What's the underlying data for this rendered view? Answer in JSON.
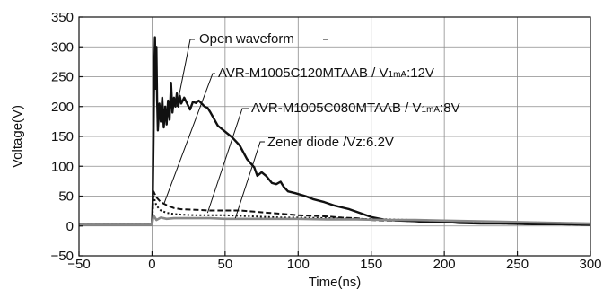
{
  "chart_data": {
    "type": "line",
    "title": "",
    "xlabel": "Time(ns)",
    "ylabel": "Voltage(V)",
    "xlim": [
      -50,
      300
    ],
    "ylim": [
      -50,
      350
    ],
    "xticks": [
      -50,
      0,
      50,
      100,
      150,
      200,
      250,
      300
    ],
    "yticks": [
      -50,
      0,
      50,
      100,
      150,
      200,
      250,
      300,
      350
    ],
    "grid": true,
    "series": [
      {
        "name": "Open waveform",
        "color": "#111111",
        "style": "solid",
        "annotation": "Open waveform",
        "points": [
          [
            -50,
            2
          ],
          [
            0,
            2
          ],
          [
            0.5,
            40
          ],
          [
            1.0,
            150
          ],
          [
            1.5,
            265
          ],
          [
            2.0,
            316
          ],
          [
            2.5,
            230
          ],
          [
            3.0,
            300
          ],
          [
            3.5,
            210
          ],
          [
            4.0,
            160
          ],
          [
            5.0,
            205
          ],
          [
            6.0,
            175
          ],
          [
            7.0,
            215
          ],
          [
            8.0,
            165
          ],
          [
            9.0,
            200
          ],
          [
            10.0,
            170
          ],
          [
            11.0,
            210
          ],
          [
            12.0,
            178
          ],
          [
            13.0,
            240
          ],
          [
            14.0,
            190
          ],
          [
            15.0,
            215
          ],
          [
            16.0,
            200
          ],
          [
            17.0,
            222
          ],
          [
            18.0,
            200
          ],
          [
            19.0,
            218
          ],
          [
            20.0,
            205
          ],
          [
            22.0,
            215
          ],
          [
            24.0,
            205
          ],
          [
            26.0,
            195
          ],
          [
            28.0,
            208
          ],
          [
            30.0,
            206
          ],
          [
            32.0,
            210
          ],
          [
            34.0,
            205
          ],
          [
            36.0,
            200
          ],
          [
            38.0,
            198
          ],
          [
            40.0,
            190
          ],
          [
            45.0,
            168
          ],
          [
            50.0,
            158
          ],
          [
            55.0,
            148
          ],
          [
            60.0,
            135
          ],
          [
            65.0,
            112
          ],
          [
            70.0,
            98
          ],
          [
            72.0,
            84
          ],
          [
            75.0,
            90
          ],
          [
            78.0,
            84
          ],
          [
            82.0,
            72
          ],
          [
            85.0,
            70
          ],
          [
            88.0,
            74
          ],
          [
            90.0,
            66
          ],
          [
            93.0,
            58
          ],
          [
            98.0,
            55
          ],
          [
            105.0,
            50
          ],
          [
            110.0,
            45
          ],
          [
            118.0,
            40
          ],
          [
            125.0,
            34
          ],
          [
            135.0,
            28
          ],
          [
            142.0,
            22
          ],
          [
            150.0,
            15
          ],
          [
            160.0,
            10
          ],
          [
            170.0,
            9
          ],
          [
            180.0,
            8
          ],
          [
            190.0,
            6
          ],
          [
            200.0,
            7
          ],
          [
            210.0,
            5
          ],
          [
            225.0,
            4
          ],
          [
            240.0,
            4
          ],
          [
            260.0,
            3
          ],
          [
            280.0,
            3
          ],
          [
            300.0,
            2
          ]
        ]
      },
      {
        "name": "AVR-M1005C120MTAAB / V1mA:12V",
        "color": "#111111",
        "style": "dashed",
        "annotation_main": "AVR-M1005C120MTAAB / V",
        "annotation_sub": "1mA",
        "annotation_tail": ":12V",
        "points": [
          [
            -50,
            2
          ],
          [
            0,
            2
          ],
          [
            1.0,
            58
          ],
          [
            3.0,
            48
          ],
          [
            6.0,
            40
          ],
          [
            10.0,
            35
          ],
          [
            15.0,
            30
          ],
          [
            20.0,
            28
          ],
          [
            30.0,
            27
          ],
          [
            40.0,
            26
          ],
          [
            50.0,
            26
          ],
          [
            60.0,
            26
          ],
          [
            70.0,
            24
          ],
          [
            80.0,
            22
          ],
          [
            90.0,
            20
          ],
          [
            100.0,
            18
          ],
          [
            110.0,
            17
          ],
          [
            120.0,
            16
          ],
          [
            130.0,
            14
          ],
          [
            140.0,
            13
          ],
          [
            150.0,
            10
          ],
          [
            160.0,
            9
          ],
          [
            170.0,
            9
          ],
          [
            180.0,
            8
          ],
          [
            190.0,
            6
          ],
          [
            200.0,
            6
          ],
          [
            220.0,
            5
          ],
          [
            240.0,
            4
          ],
          [
            260.0,
            3
          ],
          [
            280.0,
            3
          ],
          [
            300.0,
            2
          ]
        ]
      },
      {
        "name": "AVR-M1005C080MTAAB / V1mA:8V",
        "color": "#111111",
        "style": "dotted",
        "annotation_main": "AVR-M1005C080MTAAB / V",
        "annotation_sub": "1mA",
        "annotation_tail": ":8V",
        "points": [
          [
            -50,
            2
          ],
          [
            0,
            2
          ],
          [
            1.0,
            50
          ],
          [
            3.0,
            34
          ],
          [
            6.0,
            26
          ],
          [
            10.0,
            22
          ],
          [
            15.0,
            20
          ],
          [
            20.0,
            19
          ],
          [
            30.0,
            18
          ],
          [
            40.0,
            18
          ],
          [
            50.0,
            18
          ],
          [
            60.0,
            17
          ],
          [
            70.0,
            16
          ],
          [
            80.0,
            15
          ],
          [
            90.0,
            14
          ],
          [
            100.0,
            14
          ],
          [
            120.0,
            13
          ],
          [
            140.0,
            12
          ],
          [
            160.0,
            11
          ],
          [
            180.0,
            10
          ],
          [
            200.0,
            9
          ],
          [
            210.0,
            8
          ],
          [
            220.0,
            7
          ],
          [
            240.0,
            7
          ],
          [
            260.0,
            6
          ],
          [
            280.0,
            5
          ],
          [
            300.0,
            4
          ]
        ]
      },
      {
        "name": "Zener diode /Vz:6.2V",
        "color": "#888888",
        "style": "solid",
        "annotation": "Zener diode /Vz:6.2V",
        "points": [
          [
            -50,
            2
          ],
          [
            0,
            2
          ],
          [
            1.0,
            18
          ],
          [
            3.0,
            10
          ],
          [
            6.0,
            14
          ],
          [
            10.0,
            12
          ],
          [
            15.0,
            13
          ],
          [
            20.0,
            13
          ],
          [
            30.0,
            13
          ],
          [
            40.0,
            13
          ],
          [
            50.0,
            12
          ],
          [
            60.0,
            12
          ],
          [
            70.0,
            12
          ],
          [
            80.0,
            12
          ],
          [
            100.0,
            12
          ],
          [
            120.0,
            11
          ],
          [
            140.0,
            11
          ],
          [
            160.0,
            10
          ],
          [
            180.0,
            10
          ],
          [
            200.0,
            9
          ],
          [
            220.0,
            8
          ],
          [
            240.0,
            7
          ],
          [
            260.0,
            6
          ],
          [
            280.0,
            5
          ],
          [
            300.0,
            4
          ]
        ]
      }
    ]
  }
}
